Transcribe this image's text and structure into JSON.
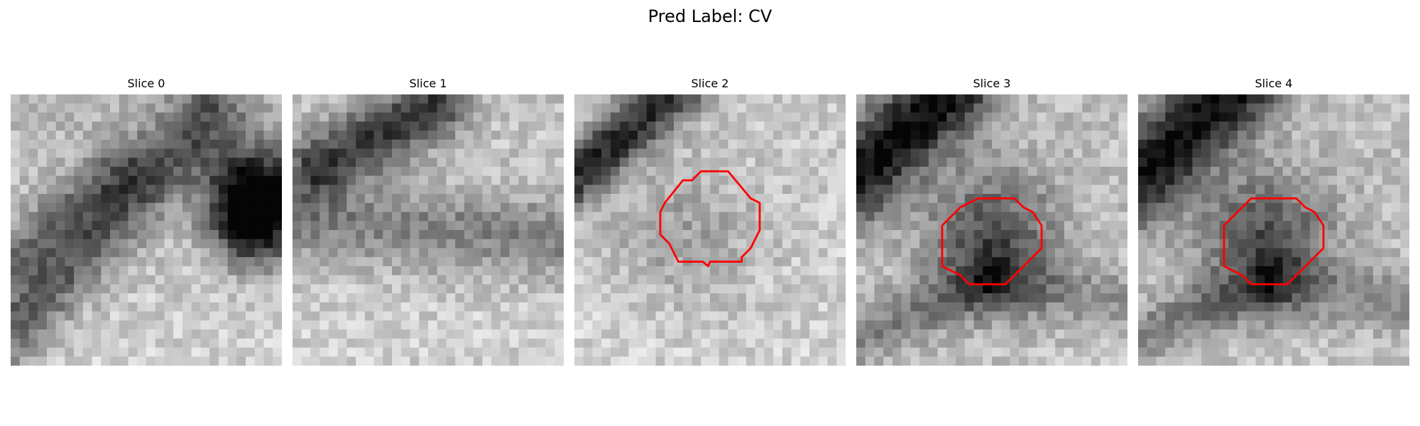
{
  "figure": {
    "title": "Pred Label: CV"
  },
  "slices": [
    {
      "title": "Slice 0",
      "has_contour": false,
      "contour_color": "#ff0000"
    },
    {
      "title": "Slice 1",
      "has_contour": false,
      "contour_color": "#ff0000"
    },
    {
      "title": "Slice 2",
      "has_contour": true,
      "contour_color": "#ff0000"
    },
    {
      "title": "Slice 3",
      "has_contour": true,
      "contour_color": "#ff0000"
    },
    {
      "title": "Slice 4",
      "has_contour": true,
      "contour_color": "#ff0000"
    }
  ]
}
